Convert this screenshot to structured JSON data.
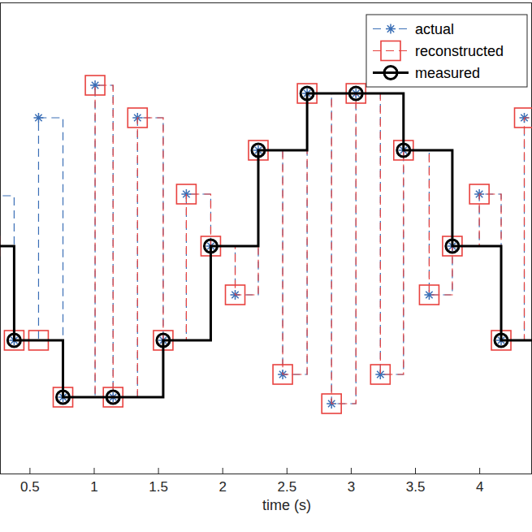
{
  "chart_data": {
    "type": "line",
    "x_label": "time (s)",
    "xlim": [
      0.27,
      4.41
    ],
    "xticks": [
      0.5,
      1,
      1.5,
      2,
      2.5,
      3,
      3.5,
      4
    ],
    "ylim": [
      -1.4,
      1.5
    ],
    "tick_labels": "x",
    "grid": false,
    "legend": "upper right",
    "series": [
      {
        "name": "actual",
        "color": "#3b6fb6",
        "marker": "asterisk",
        "line_style": "dashed",
        "x": [
          0.19,
          0.38,
          0.57,
          0.76,
          1.01,
          1.15,
          1.34,
          1.54,
          1.72,
          1.91,
          2.1,
          2.28,
          2.47,
          2.66,
          2.85,
          3.04,
          3.23,
          3.41,
          3.61,
          3.79,
          4.0,
          4.17,
          4.35
        ],
        "values": [
          0.31,
          -0.58,
          0.79,
          -0.93,
          0.99,
          -0.93,
          0.79,
          -0.58,
          0.32,
          0,
          -0.3,
          0.59,
          -0.79,
          0.94,
          -0.97,
          0.94,
          -0.79,
          0.59,
          -0.3,
          0,
          0.32,
          -0.58,
          0.79
        ]
      },
      {
        "name": "reconstructed",
        "color": "#e8423f",
        "marker": "square",
        "line_style": "dashed",
        "x": [
          0.19,
          0.38,
          0.57,
          0.76,
          1.01,
          1.15,
          1.34,
          1.54,
          1.72,
          1.91,
          2.1,
          2.28,
          2.47,
          2.66,
          2.85,
          3.04,
          3.23,
          3.41,
          3.61,
          3.79,
          4.0,
          4.17,
          4.35
        ],
        "values": [
          0,
          -0.58,
          -0.58,
          -0.93,
          0.99,
          -0.93,
          0.79,
          -0.58,
          0.32,
          0,
          -0.3,
          0.59,
          -0.79,
          0.94,
          -0.97,
          0.94,
          -0.79,
          0.59,
          -0.3,
          0,
          0.32,
          -0.58,
          0.79
        ]
      },
      {
        "name": "measured",
        "color": "#000000",
        "marker": "circle",
        "line_style": "solid",
        "x": [
          0,
          0.38,
          0.76,
          1.15,
          1.54,
          1.91,
          2.28,
          2.66,
          3.04,
          3.41,
          3.79,
          4.17
        ],
        "values": [
          0,
          -0.58,
          -0.93,
          -0.93,
          -0.58,
          0,
          0.59,
          0.94,
          0.94,
          0.59,
          0,
          -0.58
        ]
      }
    ]
  }
}
